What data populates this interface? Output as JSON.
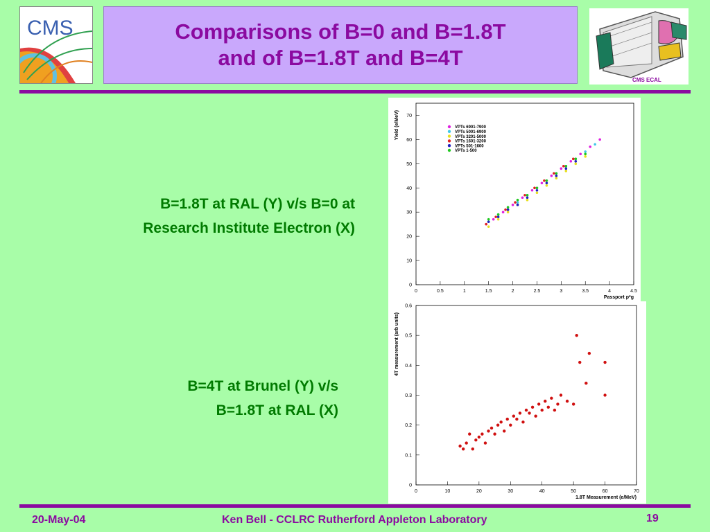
{
  "header": {
    "logo_text": "CMS",
    "title_line1": "Comparisons of B=0 and B=1.8T",
    "title_line2": "and of B=1.8T and B=4T",
    "ecal_label": "CMS ECAL"
  },
  "captions": {
    "top_line1": "B=1.8T at RAL (Y) v/s B=0 at",
    "top_line2": "Research Institute Electron (X)",
    "bottom_line1": "B=4T at Brunel (Y) v/s",
    "bottom_line2": "B=1.8T at RAL (X)"
  },
  "footer": {
    "date": "20-May-04",
    "author": "Ken Bell - CCLRC Rutherford Appleton Laboratory",
    "page": "19"
  },
  "colors": {
    "accent": "#8b0aa0",
    "background": "#a8fda8",
    "title_box": "#c9a8fc",
    "caption": "#007a00"
  },
  "chart_data": [
    {
      "type": "scatter",
      "title": "",
      "xlabel": "Passport p*g",
      "ylabel": "Yield (e/MeV)",
      "xlim": [
        0,
        4.5
      ],
      "ylim": [
        0,
        75
      ],
      "xticks": [
        0,
        0.5,
        1,
        1.5,
        2,
        2.5,
        3,
        3.5,
        4,
        4.5
      ],
      "xtick_labels": [
        "0",
        "0.5",
        "1",
        "1.5",
        "2",
        "2.5",
        "3",
        "3.5",
        "4",
        "4.5"
      ],
      "yticks": [
        0,
        10,
        20,
        30,
        40,
        50,
        60,
        70
      ],
      "legend_position": "top-left",
      "series": [
        {
          "name": "VPTs 6901-7900",
          "color": "#e020e0",
          "x": [
            1.45,
            1.6,
            1.8,
            2.0,
            2.2,
            2.4,
            2.6,
            2.8,
            3.0,
            3.2,
            3.4,
            3.6,
            3.8
          ],
          "y": [
            25,
            27,
            30,
            33,
            36,
            39,
            42,
            45,
            48,
            51,
            54,
            57,
            60
          ]
        },
        {
          "name": "VPTs 5001-6900",
          "color": "#40c8e8",
          "x": [
            1.5,
            1.7,
            1.9,
            2.1,
            2.3,
            2.5,
            2.7,
            2.9,
            3.1,
            3.3,
            3.5,
            3.7
          ],
          "y": [
            26,
            29,
            31,
            34,
            37,
            40,
            43,
            46,
            49,
            52,
            55,
            58
          ]
        },
        {
          "name": "VPTs 3201-5000",
          "color": "#e8e020",
          "x": [
            1.5,
            1.7,
            1.9,
            2.1,
            2.3,
            2.5,
            2.7,
            2.9,
            3.1,
            3.3,
            3.5
          ],
          "y": [
            24,
            27,
            30,
            33,
            35,
            38,
            41,
            44,
            47,
            50,
            53
          ]
        },
        {
          "name": "VPTs 1601-3200",
          "color": "#e02020",
          "x": [
            1.45,
            1.65,
            1.85,
            2.05,
            2.25,
            2.45,
            2.65,
            2.85,
            3.05,
            3.25
          ],
          "y": [
            25,
            28,
            31,
            34,
            37,
            40,
            43,
            46,
            49,
            52
          ]
        },
        {
          "name": "VPTs 501-1600",
          "color": "#2020c0",
          "x": [
            1.5,
            1.7,
            1.9,
            2.1,
            2.3,
            2.5,
            2.7,
            2.9,
            3.1,
            3.3
          ],
          "y": [
            26,
            28,
            31,
            33,
            36,
            39,
            42,
            45,
            48,
            51
          ]
        },
        {
          "name": "VPTs 1-500",
          "color": "#20c820",
          "x": [
            1.5,
            1.7,
            1.9,
            2.1,
            2.3,
            2.5,
            2.7,
            2.9,
            3.1,
            3.3,
            3.5
          ],
          "y": [
            27,
            29,
            32,
            35,
            37,
            40,
            43,
            46,
            49,
            52,
            54
          ]
        }
      ]
    },
    {
      "type": "scatter",
      "title": "",
      "xlabel": "1.8T Measurement (e/MeV)",
      "ylabel": "4T measurement (arb units)",
      "xlim": [
        0,
        70
      ],
      "ylim": [
        0,
        0.6
      ],
      "xticks": [
        0,
        10,
        20,
        30,
        40,
        50,
        60,
        70
      ],
      "yticks": [
        0,
        0.1,
        0.2,
        0.3,
        0.4,
        0.5,
        0.6
      ],
      "series": [
        {
          "color": "#d01010",
          "x": [
            14,
            15,
            16,
            17,
            18,
            19,
            20,
            21,
            22,
            23,
            24,
            25,
            26,
            27,
            28,
            29,
            30,
            31,
            32,
            33,
            34,
            35,
            36,
            37,
            38,
            39,
            40,
            41,
            42,
            43,
            44,
            45,
            46,
            48,
            50,
            51,
            52,
            54,
            55,
            60,
            60
          ],
          "y": [
            0.13,
            0.12,
            0.14,
            0.17,
            0.12,
            0.15,
            0.16,
            0.17,
            0.14,
            0.18,
            0.19,
            0.17,
            0.2,
            0.21,
            0.18,
            0.22,
            0.2,
            0.23,
            0.22,
            0.24,
            0.21,
            0.25,
            0.24,
            0.26,
            0.23,
            0.27,
            0.25,
            0.28,
            0.26,
            0.29,
            0.25,
            0.27,
            0.3,
            0.28,
            0.27,
            0.5,
            0.41,
            0.34,
            0.44,
            0.41,
            0.3
          ]
        }
      ]
    }
  ]
}
